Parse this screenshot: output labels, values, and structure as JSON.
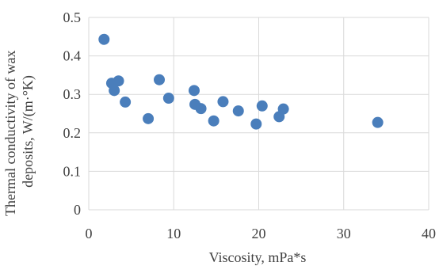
{
  "chart_data": {
    "type": "scatter",
    "xlabel": "Viscosity, mPa*s",
    "ylabel_lines": [
      "Thermal conductivity of wax",
      "deposits, W/(m·°K)"
    ],
    "xlim": [
      0,
      40
    ],
    "ylim": [
      0,
      0.5
    ],
    "x_ticks": [
      0,
      10,
      20,
      30,
      40
    ],
    "y_ticks": [
      0,
      0.1,
      0.2,
      0.3,
      0.4,
      0.5
    ],
    "x_tick_labels": [
      "0",
      "10",
      "20",
      "30",
      "40"
    ],
    "y_tick_labels": [
      "0",
      "0.1",
      "0.2",
      "0.3",
      "0.4",
      "0.5"
    ],
    "grid": {
      "vertical": true,
      "horizontal": true
    },
    "series": [
      {
        "color": "#4a7ebb",
        "points": [
          {
            "x": 1.8,
            "y": 0.443
          },
          {
            "x": 2.7,
            "y": 0.329
          },
          {
            "x": 3.0,
            "y": 0.31
          },
          {
            "x": 3.5,
            "y": 0.335
          },
          {
            "x": 4.3,
            "y": 0.28
          },
          {
            "x": 7.0,
            "y": 0.237
          },
          {
            "x": 8.3,
            "y": 0.338
          },
          {
            "x": 9.4,
            "y": 0.29
          },
          {
            "x": 12.4,
            "y": 0.31
          },
          {
            "x": 12.5,
            "y": 0.274
          },
          {
            "x": 13.2,
            "y": 0.263
          },
          {
            "x": 14.7,
            "y": 0.231
          },
          {
            "x": 15.8,
            "y": 0.281
          },
          {
            "x": 17.6,
            "y": 0.257
          },
          {
            "x": 19.7,
            "y": 0.223
          },
          {
            "x": 20.4,
            "y": 0.27
          },
          {
            "x": 22.4,
            "y": 0.242
          },
          {
            "x": 22.9,
            "y": 0.262
          },
          {
            "x": 34.0,
            "y": 0.227
          }
        ]
      }
    ]
  }
}
